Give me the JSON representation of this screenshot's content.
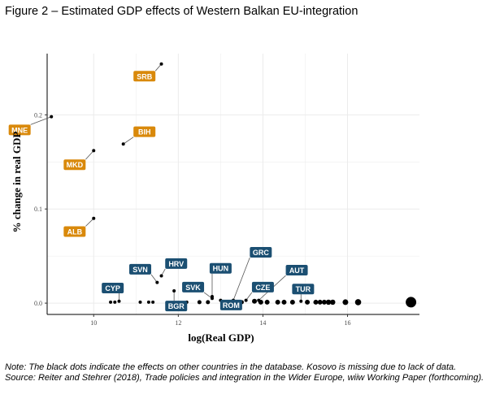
{
  "figure": {
    "title": "Figure 2 – Estimated GDP effects of Western Balkan EU-integration",
    "note": "Note: The black dots indicate the effects on other countries in the database. Kosovo is missing due to lack of data.",
    "source": "Source: Reiter and Stehrer (2018), Trade policies and integration in the Wider Europe, wiiw Working Paper (forthcoming)."
  },
  "colors": {
    "western_balkan_label": "#d9890b",
    "other_label": "#1b4f72",
    "points": "#000000",
    "gridlines": "#ebebeb"
  },
  "chart_data": {
    "type": "scatter",
    "title": "",
    "xlabel": "log(Real GDP)",
    "ylabel": "% change in real GDP",
    "xlim": [
      8.9,
      17.7
    ],
    "ylim": [
      -0.012,
      0.265
    ],
    "x_ticks": [
      10,
      12,
      14,
      16
    ],
    "y_ticks": [
      0.0,
      0.1,
      0.2
    ],
    "y_tick_labels": [
      "0.0",
      "0.1",
      "0.2"
    ],
    "grid": true,
    "labeled_points": [
      {
        "label": "SRB",
        "group": "western_balkan",
        "x": 11.6,
        "y": 0.254,
        "label_x": 11.2,
        "label_y": 0.241
      },
      {
        "label": "MNE",
        "group": "western_balkan",
        "x": 9.0,
        "y": 0.198,
        "label_x": 8.25,
        "label_y": 0.184
      },
      {
        "label": "BIH",
        "group": "western_balkan",
        "x": 10.7,
        "y": 0.169,
        "label_x": 11.2,
        "label_y": 0.182
      },
      {
        "label": "MKD",
        "group": "western_balkan",
        "x": 10.0,
        "y": 0.162,
        "label_x": 9.55,
        "label_y": 0.147
      },
      {
        "label": "ALB",
        "group": "western_balkan",
        "x": 10.0,
        "y": 0.09,
        "label_x": 9.55,
        "label_y": 0.076
      },
      {
        "label": "CYP",
        "group": "other",
        "x": 10.6,
        "y": 0.002,
        "label_x": 10.45,
        "label_y": 0.016
      },
      {
        "label": "SVN",
        "group": "other",
        "x": 11.5,
        "y": 0.022,
        "label_x": 11.1,
        "label_y": 0.036
      },
      {
        "label": "HRV",
        "group": "other",
        "x": 11.6,
        "y": 0.029,
        "label_x": 11.95,
        "label_y": 0.042
      },
      {
        "label": "BGR",
        "group": "other",
        "x": 11.9,
        "y": 0.013,
        "label_x": 11.95,
        "label_y": -0.003
      },
      {
        "label": "SVK",
        "group": "other",
        "x": 12.8,
        "y": 0.005,
        "label_x": 12.35,
        "label_y": 0.017
      },
      {
        "label": "HUN",
        "group": "other",
        "x": 12.8,
        "y": 0.007,
        "label_x": 13.0,
        "label_y": 0.037
      },
      {
        "label": "ROM",
        "group": "other",
        "x": 13.0,
        "y": 0.003,
        "label_x": 13.25,
        "label_y": -0.002
      },
      {
        "label": "GRC",
        "group": "other",
        "x": 13.3,
        "y": 0.003,
        "label_x": 13.95,
        "label_y": 0.054
      },
      {
        "label": "CZE",
        "group": "other",
        "x": 13.6,
        "y": 0.003,
        "label_x": 14.0,
        "label_y": 0.017
      },
      {
        "label": "AUT",
        "group": "other",
        "x": 13.9,
        "y": 0.003,
        "label_x": 14.8,
        "label_y": 0.035
      },
      {
        "label": "TUR",
        "group": "other",
        "x": 14.9,
        "y": 0.002,
        "label_x": 14.95,
        "label_y": 0.015
      }
    ],
    "other_points": [
      {
        "x": 10.4,
        "y": 0.001,
        "r": 2
      },
      {
        "x": 10.5,
        "y": 0.001,
        "r": 2
      },
      {
        "x": 11.1,
        "y": 0.001,
        "r": 2
      },
      {
        "x": 11.3,
        "y": 0.001,
        "r": 2
      },
      {
        "x": 11.4,
        "y": 0.001,
        "r": 2
      },
      {
        "x": 12.2,
        "y": 0.001,
        "r": 2
      },
      {
        "x": 12.5,
        "y": 0.001,
        "r": 2.5
      },
      {
        "x": 12.7,
        "y": 0.001,
        "r": 2.5
      },
      {
        "x": 13.2,
        "y": 0.001,
        "r": 2.5
      },
      {
        "x": 13.5,
        "y": 0.001,
        "r": 2.5
      },
      {
        "x": 13.8,
        "y": 0.002,
        "r": 3
      },
      {
        "x": 13.95,
        "y": 0.001,
        "r": 3
      },
      {
        "x": 14.1,
        "y": 0.001,
        "r": 3
      },
      {
        "x": 14.35,
        "y": 0.001,
        "r": 3
      },
      {
        "x": 14.5,
        "y": 0.001,
        "r": 3
      },
      {
        "x": 14.7,
        "y": 0.001,
        "r": 3
      },
      {
        "x": 15.05,
        "y": 0.001,
        "r": 3
      },
      {
        "x": 15.25,
        "y": 0.001,
        "r": 3
      },
      {
        "x": 15.35,
        "y": 0.001,
        "r": 3
      },
      {
        "x": 15.45,
        "y": 0.001,
        "r": 3
      },
      {
        "x": 15.55,
        "y": 0.001,
        "r": 3.2
      },
      {
        "x": 15.65,
        "y": 0.001,
        "r": 3.2
      },
      {
        "x": 15.95,
        "y": 0.001,
        "r": 3.5
      },
      {
        "x": 16.25,
        "y": 0.001,
        "r": 3.8
      },
      {
        "x": 17.5,
        "y": 0.001,
        "r": 6.5
      }
    ]
  }
}
